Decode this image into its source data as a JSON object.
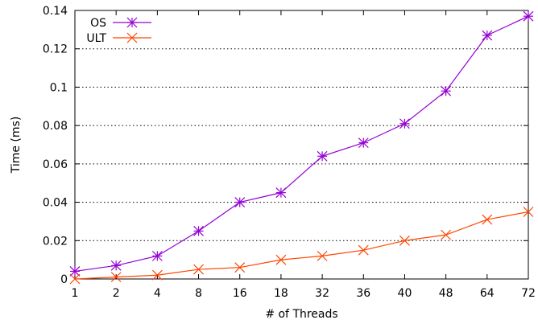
{
  "chart_data": {
    "type": "line",
    "xlabel": "# of Threads",
    "ylabel": "Time (ms)",
    "categories": [
      "1",
      "2",
      "4",
      "8",
      "16",
      "18",
      "32",
      "36",
      "40",
      "48",
      "64",
      "72"
    ],
    "ylim": [
      0,
      0.14
    ],
    "yticks": [
      "0",
      "0.02",
      "0.04",
      "0.06",
      "0.08",
      "0.1",
      "0.12",
      "0.14"
    ],
    "grid": true,
    "legend_position": "top-left",
    "series": [
      {
        "name": "OS",
        "color": "#9400d3",
        "marker": "asterisk",
        "values": [
          0.004,
          0.007,
          0.012,
          0.025,
          0.04,
          0.045,
          0.064,
          0.071,
          0.081,
          0.098,
          0.127,
          0.137
        ]
      },
      {
        "name": "ULT",
        "color": "#ff4500",
        "marker": "cross",
        "values": [
          0.0,
          0.001,
          0.002,
          0.005,
          0.006,
          0.01,
          0.012,
          0.015,
          0.02,
          0.023,
          0.031,
          0.035
        ]
      }
    ]
  }
}
